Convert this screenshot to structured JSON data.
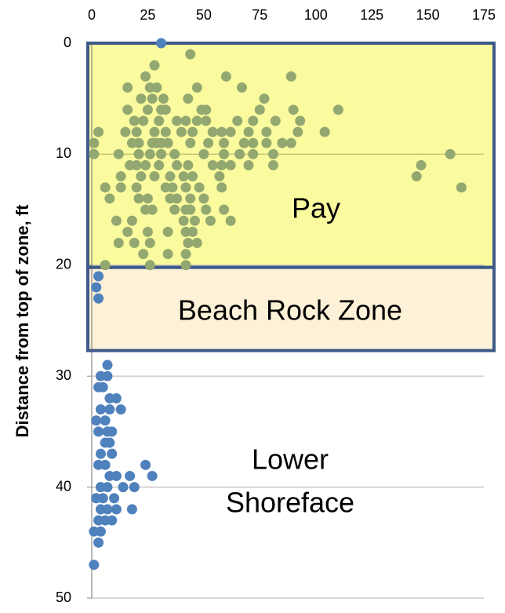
{
  "chart_data": {
    "type": "scatter",
    "y_label": "Distance from top of zone, ft",
    "xlim": [
      0,
      175
    ],
    "xticks": [
      0,
      25,
      50,
      75,
      100,
      125,
      150,
      175
    ],
    "ylim": [
      0,
      50
    ],
    "yticks": [
      0,
      10,
      20,
      30,
      40,
      50
    ],
    "y_inverted": true,
    "x_axis_position": "top",
    "grid": true,
    "zones": [
      {
        "label": "Pay",
        "ylim": [
          0,
          20.2
        ],
        "color": "#fafa9e"
      },
      {
        "label": "Beach Rock Zone",
        "ylim": [
          20.2,
          27.7
        ],
        "color": "#fdf1d8"
      }
    ],
    "annotations": [
      [
        "Lower",
        "Shoreface"
      ]
    ],
    "series": [
      {
        "color": "#93a870",
        "x": [
          44,
          28,
          24,
          60,
          89,
          16,
          26,
          29,
          47,
          67,
          22,
          27,
          32,
          43,
          77,
          16,
          25,
          31,
          33,
          49,
          51,
          75,
          90,
          110,
          19,
          23,
          30,
          38,
          42,
          47,
          51,
          65,
          72,
          82,
          93,
          3,
          15,
          20,
          28,
          33,
          40,
          45,
          54,
          58,
          62,
          70,
          78,
          92,
          104,
          1,
          18,
          21,
          27,
          29,
          31,
          34,
          44,
          52,
          59,
          68,
          72,
          78,
          85,
          89,
          1,
          12,
          21,
          26,
          31,
          37,
          50,
          59,
          66,
          72,
          81,
          160,
          17,
          20,
          24,
          30,
          38,
          43,
          54,
          58,
          62,
          70,
          81,
          147,
          13,
          22,
          28,
          35,
          41,
          45,
          57,
          145,
          6,
          13,
          20,
          33,
          36,
          42,
          48,
          58,
          165,
          8,
          21,
          25,
          35,
          38,
          44,
          50,
          24,
          27,
          37,
          42,
          44,
          51,
          59,
          11,
          18,
          41,
          46,
          53,
          62,
          16,
          25,
          34,
          42,
          45,
          12,
          19,
          26,
          43,
          47,
          23,
          34,
          42,
          26,
          6,
          42
        ],
        "values": [
          1,
          2,
          3,
          3,
          3,
          4,
          4,
          4,
          4,
          4,
          5,
          5,
          5,
          5,
          5,
          6,
          6,
          6,
          6,
          6,
          6,
          6,
          6,
          6,
          7,
          7,
          7,
          7,
          7,
          7,
          7,
          7,
          7,
          7,
          7,
          8,
          8,
          8,
          8,
          8,
          8,
          8,
          8,
          8,
          8,
          8,
          8,
          8,
          8,
          9,
          9,
          9,
          9,
          9,
          9,
          9,
          9,
          9,
          9,
          9,
          9,
          9,
          9,
          9,
          10,
          10,
          10,
          10,
          10,
          10,
          10,
          10,
          10,
          10,
          10,
          10,
          11,
          11,
          11,
          11,
          11,
          11,
          11,
          11,
          11,
          11,
          11,
          11,
          12,
          12,
          12,
          12,
          12,
          12,
          12,
          12,
          13,
          13,
          13,
          13,
          13,
          13,
          13,
          13,
          13,
          14,
          14,
          14,
          14,
          14,
          14,
          14,
          15,
          15,
          15,
          15,
          15,
          15,
          15,
          16,
          16,
          16,
          16,
          16,
          16,
          17,
          17,
          17,
          17,
          17,
          18,
          18,
          18,
          18,
          18,
          19,
          19,
          19,
          20,
          20,
          20
        ]
      },
      {
        "color": "#4f81bd",
        "x": [
          31,
          3,
          2,
          3,
          7,
          4,
          7,
          3,
          5,
          8,
          11,
          4,
          8,
          13,
          2,
          6,
          3,
          7,
          9,
          6,
          8,
          4,
          9,
          3,
          6,
          24,
          8,
          11,
          17,
          27,
          4,
          7,
          14,
          19,
          2,
          5,
          10,
          4,
          7,
          11,
          18,
          3,
          6,
          9,
          1,
          4,
          3,
          1
        ],
        "values": [
          0,
          21,
          22,
          23,
          29,
          30,
          30,
          31,
          31,
          32,
          32,
          33,
          33,
          33,
          34,
          34,
          35,
          35,
          35,
          36,
          36,
          37,
          37,
          38,
          38,
          38,
          39,
          39,
          39,
          39,
          40,
          40,
          40,
          40,
          41,
          41,
          41,
          42,
          42,
          42,
          42,
          43,
          43,
          43,
          44,
          44,
          45,
          47
        ]
      }
    ]
  }
}
